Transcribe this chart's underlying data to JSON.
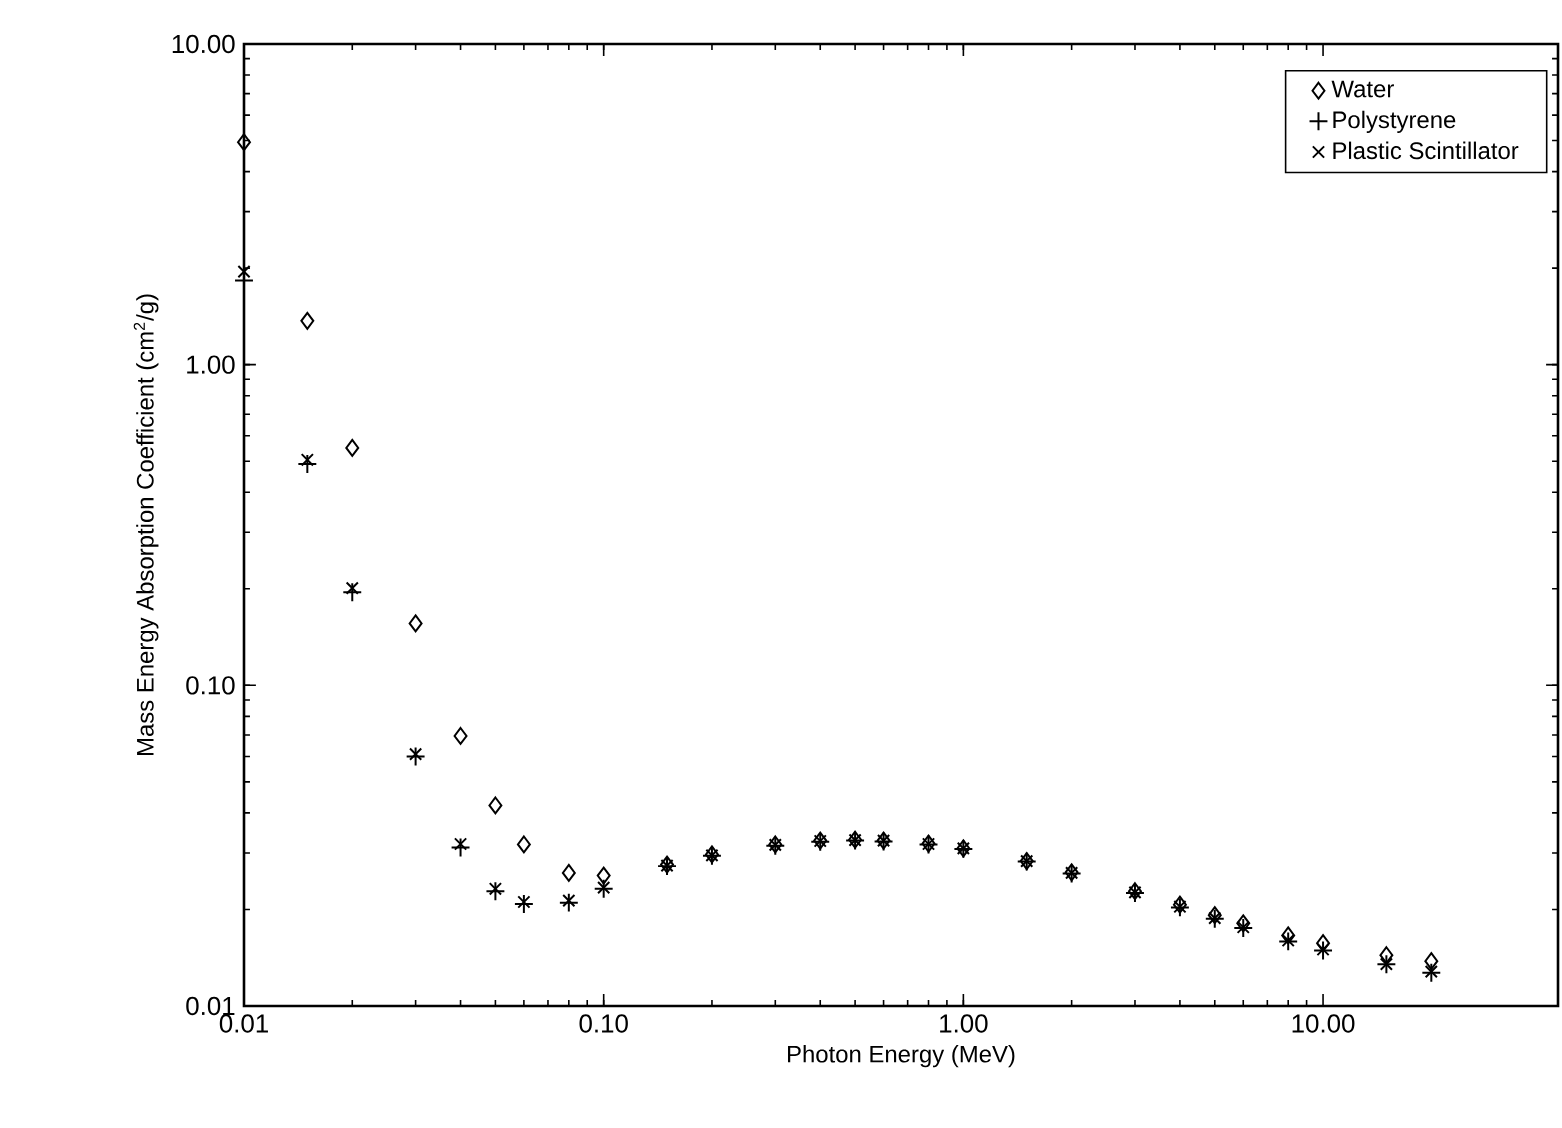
{
  "chart_data": {
    "type": "scatter",
    "xlabel": "Photon Energy (MeV)",
    "ylabel": "Mass Energy Absorption Coefficient (cm$^{2}$/g)",
    "log": "xy",
    "xlim": [
      0.01,
      45
    ],
    "ylim": [
      0.01,
      10
    ],
    "xticks": [
      0.01,
      {
        "value": 0.1,
        "label": "0.10"
      },
      {
        "value": 1,
        "label": "1.00"
      },
      {
        "value": 10,
        "label": "10.00"
      }
    ],
    "yticks": [
      0.01,
      {
        "value": 0.1,
        "label": "0.10"
      },
      {
        "value": 1,
        "label": "1.00"
      },
      {
        "value": 10,
        "label": "10.00"
      }
    ],
    "x": [
      0.01,
      0.015,
      0.02,
      0.03,
      0.04,
      0.05,
      0.06,
      0.08,
      0.1,
      0.15,
      0.2,
      0.3,
      0.4,
      0.5,
      0.6,
      0.8,
      1,
      1.5,
      2,
      3,
      4,
      5,
      6,
      8,
      10,
      15,
      20
    ],
    "legend": "top right",
    "grid": false,
    "series": [
      {
        "name": "Water",
        "color": "#000000",
        "marker": "diamond",
        "values": [
          4.94,
          1.37,
          0.55,
          0.156,
          0.0695,
          0.0422,
          0.0319,
          0.026,
          0.0255,
          0.0276,
          0.0297,
          0.0319,
          0.0328,
          0.033,
          0.0328,
          0.0321,
          0.031,
          0.0283,
          0.0261,
          0.0228,
          0.0207,
          0.0192,
          0.0181,
          0.0166,
          0.0157,
          0.0144,
          0.0138
        ]
      },
      {
        "name": "Polystyrene",
        "color": "#000000",
        "marker": "plus",
        "values": [
          1.83,
          0.49,
          0.195,
          0.06,
          0.0312,
          0.0228,
          0.0208,
          0.021,
          0.0232,
          0.0273,
          0.0294,
          0.0316,
          0.0325,
          0.0328,
          0.0326,
          0.0319,
          0.0309,
          0.0282,
          0.0259,
          0.0225,
          0.0203,
          0.0187,
          0.0175,
          0.0159,
          0.0149,
          0.0135,
          0.0127
        ]
      },
      {
        "name": "Plastic Scintillator",
        "color": "#000000",
        "marker": "cross",
        "values": [
          1.95,
          0.505,
          0.201,
          0.061,
          0.032,
          0.0232,
          0.0211,
          0.0213,
          0.0234,
          0.0274,
          0.0295,
          0.0318,
          0.0327,
          0.0329,
          0.0328,
          0.032,
          0.031,
          0.0283,
          0.026,
          0.0226,
          0.0204,
          0.0188,
          0.0176,
          0.016,
          0.015,
          0.0135,
          0.0128
        ]
      }
    ]
  }
}
